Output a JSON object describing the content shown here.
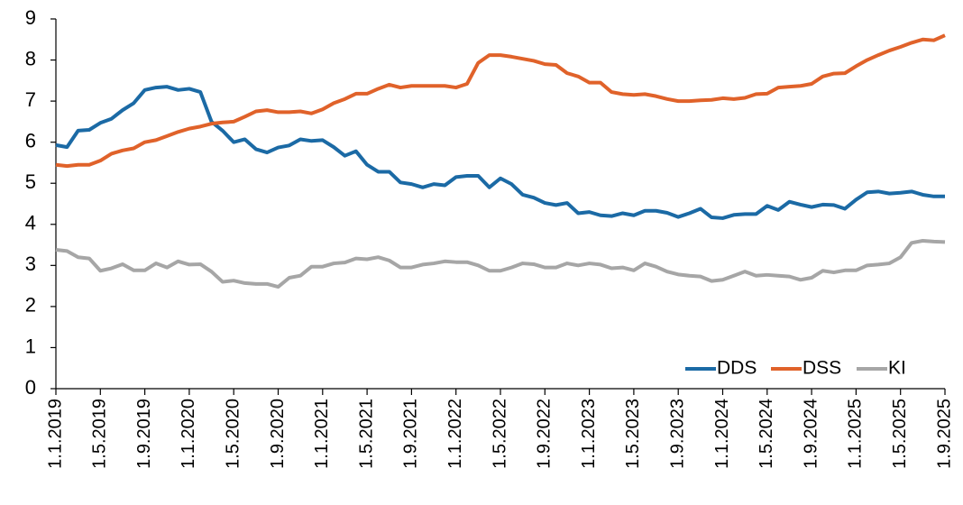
{
  "chart_data": {
    "type": "line",
    "categories": [
      "1.1.2019",
      null,
      null,
      null,
      "1.5.2019",
      null,
      null,
      null,
      "1.9.2019",
      null,
      null,
      null,
      "1.1.2020",
      null,
      null,
      null,
      "1.5.2020",
      null,
      null,
      null,
      "1.9.2020",
      null,
      null,
      null,
      "1.1.2021",
      null,
      null,
      null,
      "1.5.2021",
      null,
      null,
      null,
      "1.9.2021",
      null,
      null,
      null,
      "1.1.2022",
      null,
      null,
      null,
      "1.5.2022",
      null,
      null,
      null,
      "1.9.2022",
      null,
      null,
      null,
      "1.1.2023",
      null,
      null,
      null,
      "1.5.2023",
      null,
      null,
      null,
      "1.9.2023",
      null,
      null,
      null,
      "1.1.2024",
      null,
      null,
      null,
      "1.5.2024",
      null,
      null,
      null,
      "1.9.2024",
      null,
      null,
      null,
      "1.1.2025",
      null,
      null,
      null,
      "1.5.2025",
      null,
      null,
      null,
      "1.9.2025"
    ],
    "series": [
      {
        "name": "DDS",
        "color": "#1b6aa5",
        "values": [
          5.93,
          5.88,
          6.28,
          6.3,
          6.47,
          6.57,
          6.78,
          6.95,
          7.27,
          7.33,
          7.35,
          7.27,
          7.3,
          7.22,
          6.5,
          6.28,
          6.0,
          6.07,
          5.83,
          5.75,
          5.87,
          5.92,
          6.07,
          6.03,
          6.05,
          5.88,
          5.67,
          5.78,
          5.45,
          5.28,
          5.28,
          5.02,
          4.98,
          4.9,
          4.98,
          4.95,
          5.15,
          5.18,
          5.18,
          4.9,
          5.12,
          4.98,
          4.72,
          4.65,
          4.52,
          4.47,
          4.52,
          4.27,
          4.3,
          4.22,
          4.2,
          4.27,
          4.22,
          4.33,
          4.33,
          4.28,
          4.18,
          4.27,
          4.38,
          4.17,
          4.15,
          4.23,
          4.25,
          4.25,
          4.45,
          4.35,
          4.55,
          4.48,
          4.42,
          4.48,
          4.47,
          4.38,
          4.6,
          4.78,
          4.8,
          4.75,
          4.77,
          4.8,
          4.72,
          4.68,
          4.68
        ]
      },
      {
        "name": "DSS",
        "color": "#e0622a",
        "values": [
          5.45,
          5.42,
          5.45,
          5.45,
          5.55,
          5.72,
          5.8,
          5.85,
          6.0,
          6.05,
          6.15,
          6.25,
          6.33,
          6.38,
          6.45,
          6.48,
          6.5,
          6.62,
          6.75,
          6.78,
          6.73,
          6.73,
          6.75,
          6.7,
          6.8,
          6.95,
          7.05,
          7.18,
          7.18,
          7.3,
          7.4,
          7.33,
          7.37,
          7.37,
          7.37,
          7.37,
          7.33,
          7.42,
          7.93,
          8.12,
          8.12,
          8.08,
          8.03,
          7.98,
          7.9,
          7.88,
          7.68,
          7.6,
          7.45,
          7.45,
          7.22,
          7.17,
          7.15,
          7.17,
          7.12,
          7.05,
          7.0,
          7.0,
          7.02,
          7.03,
          7.07,
          7.05,
          7.08,
          7.17,
          7.18,
          7.33,
          7.35,
          7.37,
          7.42,
          7.6,
          7.67,
          7.68,
          7.85,
          8.0,
          8.12,
          8.23,
          8.32,
          8.42,
          8.5,
          8.48,
          8.6
        ]
      },
      {
        "name": "KI",
        "color": "#a6a6a6",
        "values": [
          3.38,
          3.35,
          3.2,
          3.17,
          2.87,
          2.93,
          3.03,
          2.88,
          2.88,
          3.05,
          2.95,
          3.1,
          3.02,
          3.03,
          2.85,
          2.6,
          2.63,
          2.57,
          2.55,
          2.55,
          2.48,
          2.7,
          2.75,
          2.97,
          2.97,
          3.05,
          3.07,
          3.17,
          3.15,
          3.2,
          3.12,
          2.95,
          2.95,
          3.02,
          3.05,
          3.1,
          3.08,
          3.08,
          3.0,
          2.87,
          2.87,
          2.95,
          3.05,
          3.03,
          2.95,
          2.95,
          3.05,
          3.0,
          3.05,
          3.02,
          2.93,
          2.95,
          2.88,
          3.05,
          2.97,
          2.85,
          2.78,
          2.75,
          2.73,
          2.62,
          2.65,
          2.75,
          2.85,
          2.75,
          2.77,
          2.75,
          2.73,
          2.65,
          2.7,
          2.87,
          2.83,
          2.88,
          2.88,
          3.0,
          3.02,
          3.05,
          3.2,
          3.55,
          3.6,
          3.58,
          3.57
        ]
      }
    ],
    "ylim": [
      0,
      9
    ],
    "yticks": [
      0,
      1,
      2,
      3,
      4,
      5,
      6,
      7,
      8,
      9
    ],
    "grid": false,
    "legend": "lower right"
  }
}
